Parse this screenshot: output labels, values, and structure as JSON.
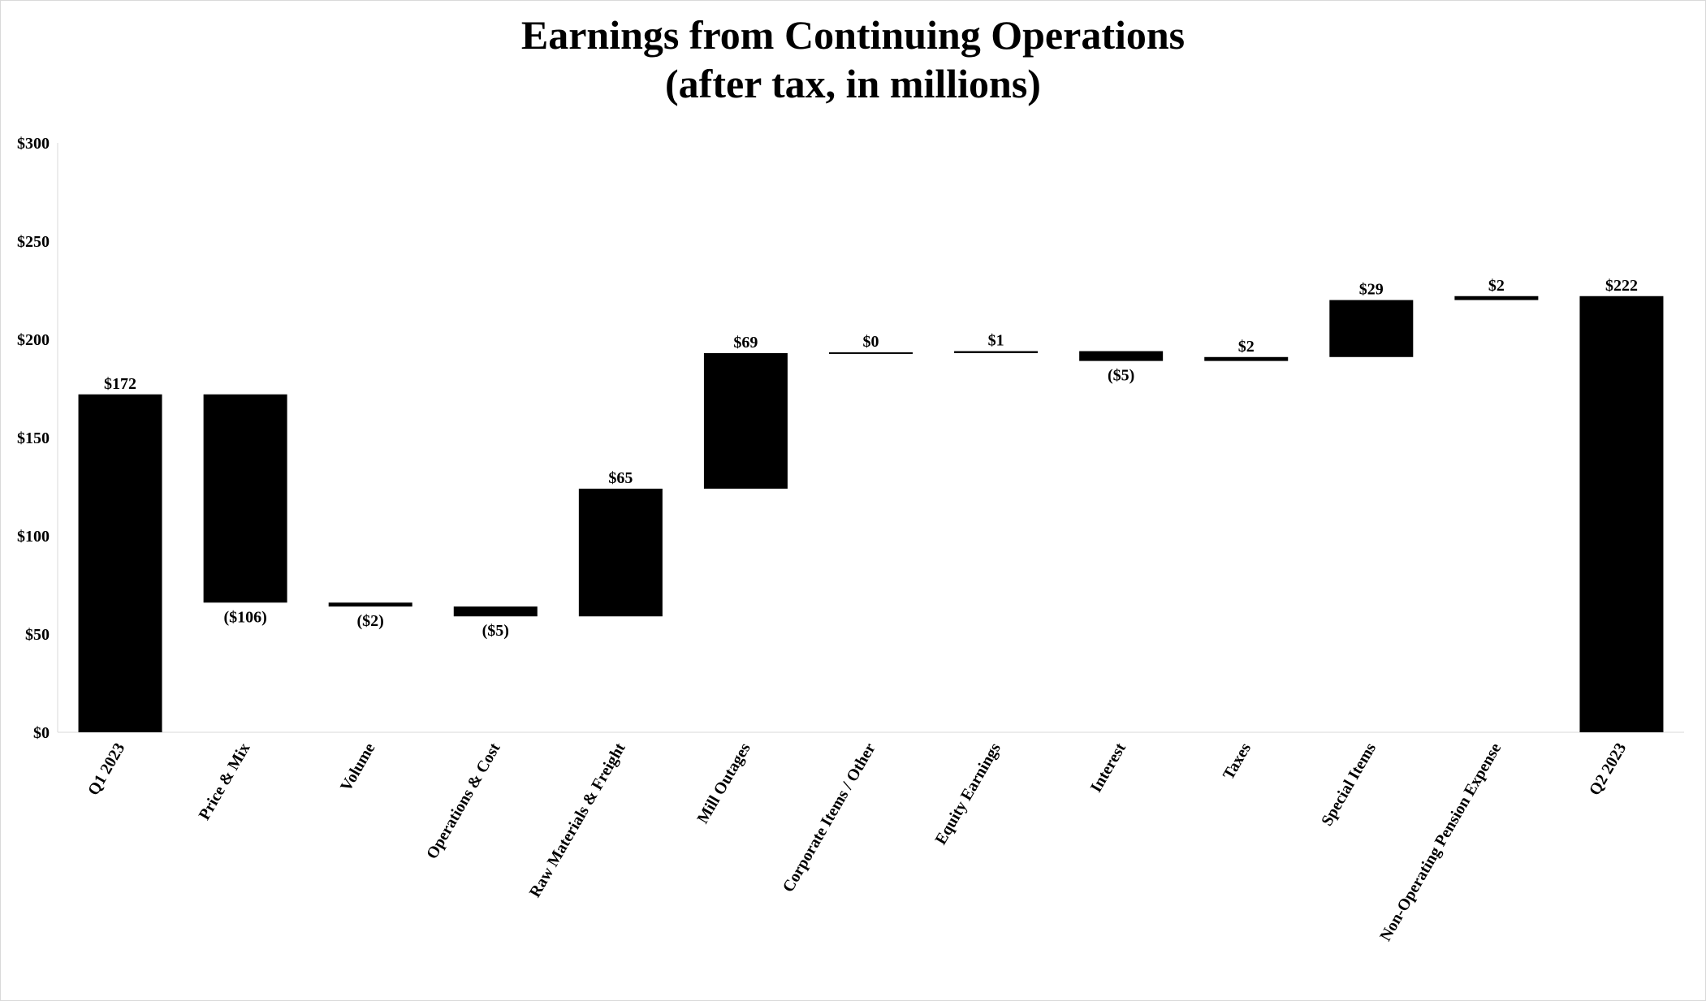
{
  "chart_data": {
    "type": "waterfall",
    "title": "Earnings from Continuing Operations",
    "subtitle": "(after tax, in millions)",
    "xlabel": "",
    "ylabel": "",
    "ylim": [
      0,
      300
    ],
    "yticks": [
      0,
      50,
      100,
      150,
      200,
      250,
      300
    ],
    "ytick_labels": [
      "$0",
      "$50",
      "$100",
      "$150",
      "$200",
      "$250",
      "$300"
    ],
    "grid": false,
    "bar_color": "#000000",
    "categories": [
      "Q1 2023",
      "Price & Mix",
      "Volume",
      "Operations & Cost",
      "Raw Materials & Freight",
      "Mill Outages",
      "Corporate Items / Other",
      "Equity Earnings",
      "Interest",
      "Taxes",
      "Special Items",
      "Non-Operating Pension Expense",
      "Q2 2023"
    ],
    "values": [
      172,
      -106,
      -2,
      -5,
      65,
      69,
      0,
      1,
      -5,
      2,
      29,
      2,
      222
    ],
    "kinds": [
      "total",
      "delta",
      "delta",
      "delta",
      "delta",
      "delta",
      "delta",
      "delta",
      "delta",
      "delta",
      "delta",
      "delta",
      "total"
    ],
    "data_labels": [
      "$172",
      "($106)",
      "($2)",
      "($5)",
      "$65",
      "$69",
      "$0",
      "$1",
      "($5)",
      "$2",
      "$29",
      "$2",
      "$222"
    ]
  }
}
